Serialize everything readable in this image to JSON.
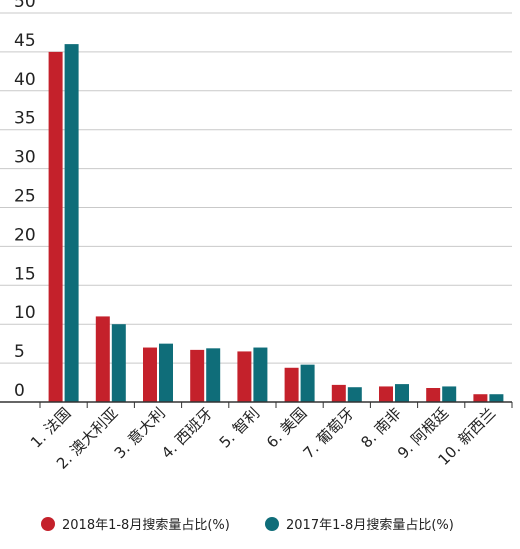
{
  "chart_data": {
    "type": "bar",
    "title": "",
    "xlabel": "",
    "ylabel": "",
    "ylim": [
      0,
      50
    ],
    "yticks": [
      0,
      5,
      10,
      15,
      20,
      25,
      30,
      35,
      40,
      45,
      50
    ],
    "grid": true,
    "legend_position": "bottom",
    "categories": [
      "1. 法国",
      "2. 澳大利亚",
      "3. 意大利",
      "4. 西班牙",
      "5. 智利",
      "6. 美国",
      "7. 葡萄牙",
      "8. 南非",
      "9. 阿根廷",
      "10. 新西兰"
    ],
    "series": [
      {
        "name": "2018年1-8月搜索量占比(%)",
        "color": "#c4212b",
        "values": [
          45.0,
          11.0,
          7.0,
          6.7,
          6.5,
          4.4,
          2.2,
          2.0,
          1.8,
          1.0
        ]
      },
      {
        "name": "2017年1-8月搜索量占比(%)",
        "color": "#0f6d79",
        "values": [
          46.0,
          10.0,
          7.5,
          6.9,
          7.0,
          4.8,
          1.9,
          2.3,
          2.0,
          1.0
        ]
      }
    ]
  }
}
